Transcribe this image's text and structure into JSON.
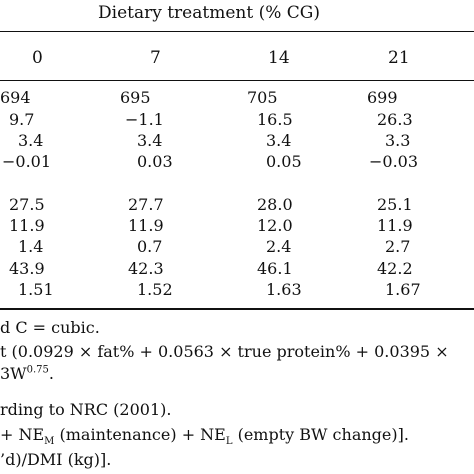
{
  "table": {
    "header_title": "Dietary treatment (% CG)",
    "columns": [
      "0",
      "7",
      "14",
      "21"
    ],
    "group1": [
      [
        "694",
        "695",
        "705",
        "699"
      ],
      [
        "9.7",
        "−1.1",
        "16.5",
        "26.3"
      ],
      [
        "3.4",
        "3.4",
        "3.4",
        "3.3"
      ],
      [
        "−0.01",
        "0.03",
        "0.05",
        "−0.03"
      ]
    ],
    "group2": [
      [
        "27.5",
        "27.7",
        "28.0",
        "25.1"
      ],
      [
        "11.9",
        "11.9",
        "12.0",
        "11.9"
      ],
      [
        "1.4",
        "0.7",
        "2.4",
        "2.7"
      ],
      [
        "43.9",
        "42.3",
        "46.1",
        "42.2"
      ],
      [
        "1.51",
        "1.52",
        "1.63",
        "1.67"
      ]
    ]
  },
  "footnotes": {
    "line1": "d C = cubic.",
    "line2": "t (0.0929 × fat% + 0.0563 × true protein% + 0.0395 ×",
    "line3_main": "3W",
    "line3_sup": "0.75",
    "line3_end": ".",
    "line4": "rding to NRC (2001).",
    "line5_a": "+ NE",
    "line5_sub1": "M",
    "line5_b": " (maintenance) + NE",
    "line5_sub2": "L",
    "line5_c": " (empty BW change)].",
    "line6": "’d)/DMI (kg)]."
  }
}
